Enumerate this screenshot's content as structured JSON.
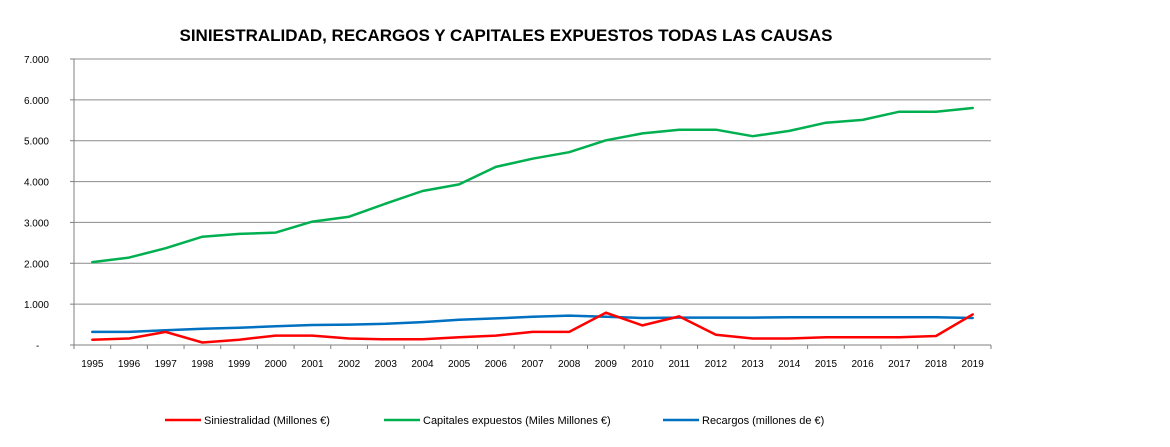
{
  "chart_data": {
    "type": "line",
    "title": "SINIESTRALIDAD, RECARGOS Y CAPITALES EXPUESTOS  TODAS LAS CAUSAS",
    "xlabel": "",
    "ylabel": "",
    "ylim": [
      0,
      7000
    ],
    "y_ticks": [
      {
        "value": 0,
        "label": "-"
      },
      {
        "value": 1000,
        "label": "1.000"
      },
      {
        "value": 2000,
        "label": "2.000"
      },
      {
        "value": 3000,
        "label": "3.000"
      },
      {
        "value": 4000,
        "label": "4.000"
      },
      {
        "value": 5000,
        "label": "5.000"
      },
      {
        "value": 6000,
        "label": "6.000"
      },
      {
        "value": 7000,
        "label": "7.000"
      }
    ],
    "categories": [
      "1995",
      "1996",
      "1997",
      "1998",
      "1999",
      "2000",
      "2001",
      "2002",
      "2003",
      "2004",
      "2005",
      "2006",
      "2007",
      "2008",
      "2009",
      "2010",
      "2011",
      "2012",
      "2013",
      "2014",
      "2015",
      "2016",
      "2017",
      "2018",
      "2019"
    ],
    "grid": true,
    "legend_position": "bottom",
    "series": [
      {
        "name": "Siniestralidad (Millones €)",
        "color": "#ff0000",
        "values": [
          130,
          160,
          320,
          60,
          130,
          230,
          230,
          160,
          140,
          140,
          190,
          230,
          320,
          320,
          790,
          480,
          700,
          250,
          160,
          160,
          190,
          190,
          190,
          220,
          750
        ]
      },
      {
        "name": "Capitales expuestos (Miles Millones €)",
        "color": "#00b050",
        "values": [
          2030,
          2140,
          2370,
          2650,
          2720,
          2750,
          3020,
          3140,
          3460,
          3770,
          3930,
          4360,
          4560,
          4720,
          5010,
          5180,
          5270,
          5270,
          5110,
          5240,
          5440,
          5510,
          5710,
          5710,
          5800
        ]
      },
      {
        "name": "Recargos (millones de €)",
        "color": "#0070c0",
        "values": [
          320,
          320,
          360,
          400,
          420,
          460,
          490,
          500,
          520,
          560,
          620,
          650,
          690,
          720,
          690,
          660,
          670,
          670,
          670,
          680,
          680,
          680,
          680,
          680,
          660
        ]
      }
    ]
  }
}
